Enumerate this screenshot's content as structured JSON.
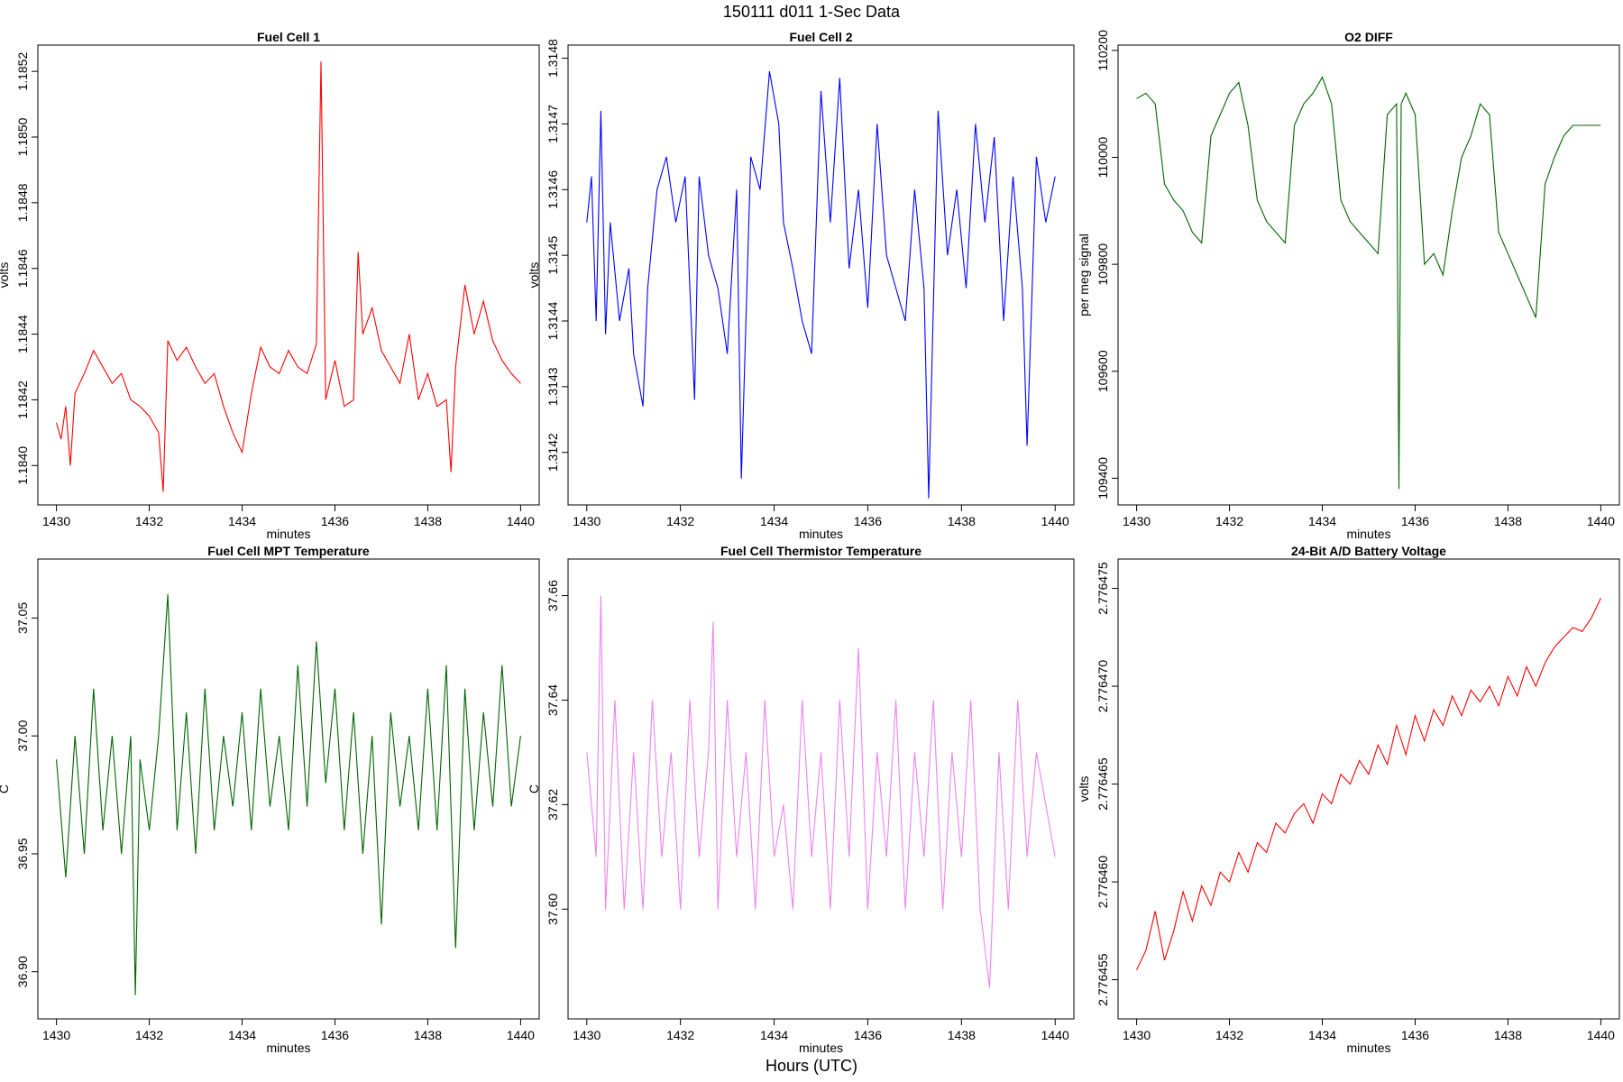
{
  "figure": {
    "title": "150111    d011    1-Sec Data",
    "xlabel": "Hours (UTC)"
  },
  "chart_data": [
    {
      "type": "line",
      "title": "Fuel Cell 1",
      "xlabel": "minutes",
      "ylabel": "volts",
      "color": "#ff0000",
      "xlim": [
        1429.6,
        1440.4
      ],
      "ylim": [
        1.18388,
        1.18528
      ],
      "xticks": [
        1430,
        1432,
        1434,
        1436,
        1438,
        1440
      ],
      "yticks": [
        "1.1840",
        "1.1842",
        "1.1844",
        "1.1846",
        "1.1848",
        "1.1850",
        "1.1852"
      ],
      "grid": false,
      "series": [
        {
          "x": [
            1430.0,
            1430.1,
            1430.2,
            1430.3,
            1430.4,
            1430.6,
            1430.8,
            1431.0,
            1431.2,
            1431.4,
            1431.6,
            1431.8,
            1432.0,
            1432.2,
            1432.3,
            1432.4,
            1432.6,
            1432.8,
            1433.0,
            1433.2,
            1433.4,
            1433.6,
            1433.8,
            1434.0,
            1434.2,
            1434.4,
            1434.6,
            1434.8,
            1435.0,
            1435.2,
            1435.4,
            1435.6,
            1435.7,
            1435.8,
            1436.0,
            1436.2,
            1436.4,
            1436.5,
            1436.6,
            1436.8,
            1437.0,
            1437.2,
            1437.4,
            1437.6,
            1437.8,
            1438.0,
            1438.2,
            1438.4,
            1438.5,
            1438.6,
            1438.8,
            1439.0,
            1439.2,
            1439.4,
            1439.6,
            1439.8,
            1440.0
          ],
          "y": [
            1.18413,
            1.18408,
            1.18418,
            1.184,
            1.18422,
            1.18428,
            1.18435,
            1.1843,
            1.18425,
            1.18428,
            1.1842,
            1.18418,
            1.18415,
            1.1841,
            1.18392,
            1.18438,
            1.18432,
            1.18436,
            1.1843,
            1.18425,
            1.18428,
            1.18418,
            1.1841,
            1.18404,
            1.18422,
            1.18436,
            1.1843,
            1.18428,
            1.18435,
            1.1843,
            1.18428,
            1.18437,
            1.18523,
            1.1842,
            1.18432,
            1.18418,
            1.1842,
            1.18465,
            1.1844,
            1.18448,
            1.18435,
            1.1843,
            1.18425,
            1.1844,
            1.1842,
            1.18428,
            1.18418,
            1.1842,
            1.18398,
            1.1843,
            1.18455,
            1.1844,
            1.1845,
            1.18438,
            1.18432,
            1.18428,
            1.18425
          ]
        }
      ]
    },
    {
      "type": "line",
      "title": "Fuel Cell 2",
      "xlabel": "minutes",
      "ylabel": "volts",
      "color": "#0000ff",
      "xlim": [
        1429.6,
        1440.4
      ],
      "ylim": [
        1.31412,
        1.31482
      ],
      "xticks": [
        1430,
        1432,
        1434,
        1436,
        1438,
        1440
      ],
      "yticks": [
        "1.3142",
        "1.3143",
        "1.3144",
        "1.3145",
        "1.3146",
        "1.3147",
        "1.3148"
      ],
      "grid": false,
      "series": [
        {
          "x": [
            1430.0,
            1430.1,
            1430.2,
            1430.3,
            1430.4,
            1430.5,
            1430.7,
            1430.9,
            1431.0,
            1431.2,
            1431.3,
            1431.5,
            1431.7,
            1431.9,
            1432.1,
            1432.3,
            1432.4,
            1432.6,
            1432.8,
            1433.0,
            1433.2,
            1433.3,
            1433.5,
            1433.7,
            1433.9,
            1434.1,
            1434.2,
            1434.4,
            1434.6,
            1434.8,
            1435.0,
            1435.2,
            1435.4,
            1435.6,
            1435.8,
            1436.0,
            1436.2,
            1436.4,
            1436.6,
            1436.8,
            1437.0,
            1437.2,
            1437.3,
            1437.5,
            1437.7,
            1437.9,
            1438.1,
            1438.3,
            1438.5,
            1438.7,
            1438.9,
            1439.1,
            1439.3,
            1439.4,
            1439.6,
            1439.8,
            1440.0
          ],
          "y": [
            1.31455,
            1.31462,
            1.3144,
            1.31472,
            1.31438,
            1.31455,
            1.3144,
            1.31448,
            1.31435,
            1.31427,
            1.31445,
            1.3146,
            1.31465,
            1.31455,
            1.31462,
            1.31428,
            1.31462,
            1.3145,
            1.31445,
            1.31435,
            1.3146,
            1.31416,
            1.31465,
            1.3146,
            1.31478,
            1.3147,
            1.31455,
            1.31448,
            1.3144,
            1.31435,
            1.31475,
            1.31455,
            1.31477,
            1.31448,
            1.3146,
            1.31442,
            1.3147,
            1.3145,
            1.31445,
            1.3144,
            1.3146,
            1.31445,
            1.31413,
            1.31472,
            1.3145,
            1.3146,
            1.31445,
            1.3147,
            1.31455,
            1.31468,
            1.3144,
            1.31462,
            1.31445,
            1.31421,
            1.31465,
            1.31455,
            1.31462
          ]
        }
      ]
    },
    {
      "type": "line",
      "title": "O2 DIFF",
      "xlabel": "minutes",
      "ylabel": "per meg signal",
      "color": "#006400",
      "xlim": [
        1429.6,
        1440.4
      ],
      "ylim": [
        109350,
        110210
      ],
      "xticks": [
        1430,
        1432,
        1434,
        1436,
        1438,
        1440
      ],
      "yticks": [
        "109400",
        "109600",
        "109800",
        "110000",
        "110200"
      ],
      "grid": false,
      "series": [
        {
          "x": [
            1430.0,
            1430.2,
            1430.4,
            1430.6,
            1430.8,
            1431.0,
            1431.2,
            1431.4,
            1431.6,
            1431.8,
            1432.0,
            1432.2,
            1432.4,
            1432.6,
            1432.8,
            1433.0,
            1433.2,
            1433.4,
            1433.6,
            1433.8,
            1434.0,
            1434.2,
            1434.4,
            1434.6,
            1434.8,
            1435.0,
            1435.2,
            1435.4,
            1435.6,
            1435.65,
            1435.7,
            1435.8,
            1436.0,
            1436.2,
            1436.4,
            1436.6,
            1436.8,
            1437.0,
            1437.2,
            1437.4,
            1437.6,
            1437.8,
            1438.0,
            1438.2,
            1438.4,
            1438.6,
            1438.8,
            1439.0,
            1439.2,
            1439.4,
            1439.6,
            1439.8,
            1440.0
          ],
          "y": [
            110110,
            110120,
            110100,
            109950,
            109920,
            109900,
            109860,
            109840,
            110040,
            110080,
            110120,
            110140,
            110060,
            109920,
            109880,
            109860,
            109840,
            110060,
            110100,
            110120,
            110150,
            110100,
            109920,
            109880,
            109860,
            109840,
            109820,
            110080,
            110100,
            109380,
            110100,
            110120,
            110080,
            109800,
            109820,
            109780,
            109900,
            110000,
            110040,
            110100,
            110080,
            109860,
            109820,
            109780,
            109740,
            109700,
            109950,
            110000,
            110040,
            110060,
            110060,
            110060,
            110060
          ]
        }
      ]
    },
    {
      "type": "line",
      "title": "Fuel Cell MPT Temperature",
      "xlabel": "minutes",
      "ylabel": "C",
      "color": "#006400",
      "xlim": [
        1429.6,
        1440.4
      ],
      "ylim": [
        36.88,
        37.075
      ],
      "xticks": [
        1430,
        1432,
        1434,
        1436,
        1438,
        1440
      ],
      "yticks": [
        "36.90",
        "36.95",
        "37.00",
        "37.05"
      ],
      "grid": false,
      "series": [
        {
          "x": [
            1430.0,
            1430.2,
            1430.4,
            1430.6,
            1430.8,
            1431.0,
            1431.2,
            1431.4,
            1431.6,
            1431.7,
            1431.8,
            1432.0,
            1432.2,
            1432.4,
            1432.6,
            1432.8,
            1433.0,
            1433.2,
            1433.4,
            1433.6,
            1433.8,
            1434.0,
            1434.2,
            1434.4,
            1434.6,
            1434.8,
            1435.0,
            1435.2,
            1435.4,
            1435.6,
            1435.8,
            1436.0,
            1436.2,
            1436.4,
            1436.6,
            1436.8,
            1437.0,
            1437.2,
            1437.4,
            1437.6,
            1437.8,
            1438.0,
            1438.2,
            1438.4,
            1438.6,
            1438.8,
            1439.0,
            1439.2,
            1439.4,
            1439.6,
            1439.8,
            1440.0
          ],
          "y": [
            36.99,
            36.94,
            37.0,
            36.95,
            37.02,
            36.96,
            37.0,
            36.95,
            37.0,
            36.89,
            36.99,
            36.96,
            37.0,
            37.06,
            36.96,
            37.01,
            36.95,
            37.02,
            36.96,
            37.0,
            36.97,
            37.01,
            36.96,
            37.02,
            36.97,
            37.0,
            36.96,
            37.03,
            36.97,
            37.04,
            36.98,
            37.02,
            36.96,
            37.01,
            36.95,
            37.0,
            36.92,
            37.01,
            36.97,
            37.0,
            36.96,
            37.02,
            36.96,
            37.03,
            36.91,
            37.02,
            36.96,
            37.01,
            36.97,
            37.03,
            36.97,
            37.0
          ]
        }
      ]
    },
    {
      "type": "line",
      "title": "Fuel Cell Thermistor Temperature",
      "xlabel": "minutes",
      "ylabel": "C",
      "color": "#ee82ee",
      "xlim": [
        1429.6,
        1440.4
      ],
      "ylim": [
        37.579,
        37.667
      ],
      "xticks": [
        1430,
        1432,
        1434,
        1436,
        1438,
        1440
      ],
      "yticks": [
        "37.60",
        "37.62",
        "37.64",
        "37.66"
      ],
      "grid": false,
      "series": [
        {
          "x": [
            1430.0,
            1430.2,
            1430.3,
            1430.4,
            1430.6,
            1430.8,
            1431.0,
            1431.2,
            1431.4,
            1431.6,
            1431.8,
            1432.0,
            1432.2,
            1432.4,
            1432.6,
            1432.7,
            1432.8,
            1433.0,
            1433.2,
            1433.4,
            1433.6,
            1433.8,
            1434.0,
            1434.2,
            1434.4,
            1434.6,
            1434.8,
            1435.0,
            1435.2,
            1435.4,
            1435.6,
            1435.8,
            1436.0,
            1436.2,
            1436.4,
            1436.6,
            1436.8,
            1437.0,
            1437.2,
            1437.4,
            1437.6,
            1437.8,
            1438.0,
            1438.2,
            1438.4,
            1438.6,
            1438.8,
            1439.0,
            1439.2,
            1439.4,
            1439.6,
            1439.8,
            1440.0
          ],
          "y": [
            37.63,
            37.61,
            37.66,
            37.6,
            37.64,
            37.6,
            37.63,
            37.6,
            37.64,
            37.61,
            37.63,
            37.6,
            37.64,
            37.61,
            37.63,
            37.655,
            37.6,
            37.64,
            37.61,
            37.63,
            37.6,
            37.64,
            37.61,
            37.62,
            37.6,
            37.64,
            37.61,
            37.63,
            37.6,
            37.64,
            37.61,
            37.65,
            37.6,
            37.63,
            37.61,
            37.64,
            37.6,
            37.63,
            37.61,
            37.64,
            37.6,
            37.63,
            37.61,
            37.64,
            37.6,
            37.585,
            37.63,
            37.6,
            37.64,
            37.61,
            37.63,
            37.62,
            37.61
          ]
        }
      ]
    },
    {
      "type": "line",
      "title": "24-Bit A/D Battery Voltage",
      "xlabel": "minutes",
      "ylabel": "volts",
      "color": "#ff0000",
      "xlim": [
        1429.6,
        1440.4
      ],
      "ylim": [
        2.776453,
        2.7764765
      ],
      "xticks": [
        1430,
        1432,
        1434,
        1436,
        1438,
        1440
      ],
      "yticks": [
        "2.776455",
        "2.776460",
        "2.776465",
        "2.776470",
        "2.776475"
      ],
      "grid": false,
      "series": [
        {
          "x": [
            1430.0,
            1430.2,
            1430.4,
            1430.6,
            1430.8,
            1431.0,
            1431.2,
            1431.4,
            1431.6,
            1431.8,
            1432.0,
            1432.2,
            1432.4,
            1432.6,
            1432.8,
            1433.0,
            1433.2,
            1433.4,
            1433.6,
            1433.8,
            1434.0,
            1434.2,
            1434.4,
            1434.6,
            1434.8,
            1435.0,
            1435.2,
            1435.4,
            1435.6,
            1435.8,
            1436.0,
            1436.2,
            1436.4,
            1436.6,
            1436.8,
            1437.0,
            1437.2,
            1437.4,
            1437.6,
            1437.8,
            1438.0,
            1438.2,
            1438.4,
            1438.6,
            1438.8,
            1439.0,
            1439.2,
            1439.4,
            1439.6,
            1439.8,
            1440.0
          ],
          "y": [
            2.7764555,
            2.7764565,
            2.7764585,
            2.776456,
            2.7764575,
            2.7764595,
            2.776458,
            2.7764598,
            2.7764588,
            2.7764605,
            2.77646,
            2.7764615,
            2.7764605,
            2.776462,
            2.7764615,
            2.776463,
            2.7764625,
            2.7764635,
            2.776464,
            2.776463,
            2.7764645,
            2.776464,
            2.7764655,
            2.776465,
            2.7764662,
            2.7764655,
            2.776467,
            2.776466,
            2.776468,
            2.7764665,
            2.7764685,
            2.7764672,
            2.7764688,
            2.776468,
            2.7764695,
            2.7764685,
            2.7764698,
            2.7764692,
            2.77647,
            2.776469,
            2.7764705,
            2.7764695,
            2.776471,
            2.77647,
            2.7764712,
            2.776472,
            2.7764725,
            2.776473,
            2.7764728,
            2.7764735,
            2.7764745
          ]
        }
      ]
    }
  ]
}
